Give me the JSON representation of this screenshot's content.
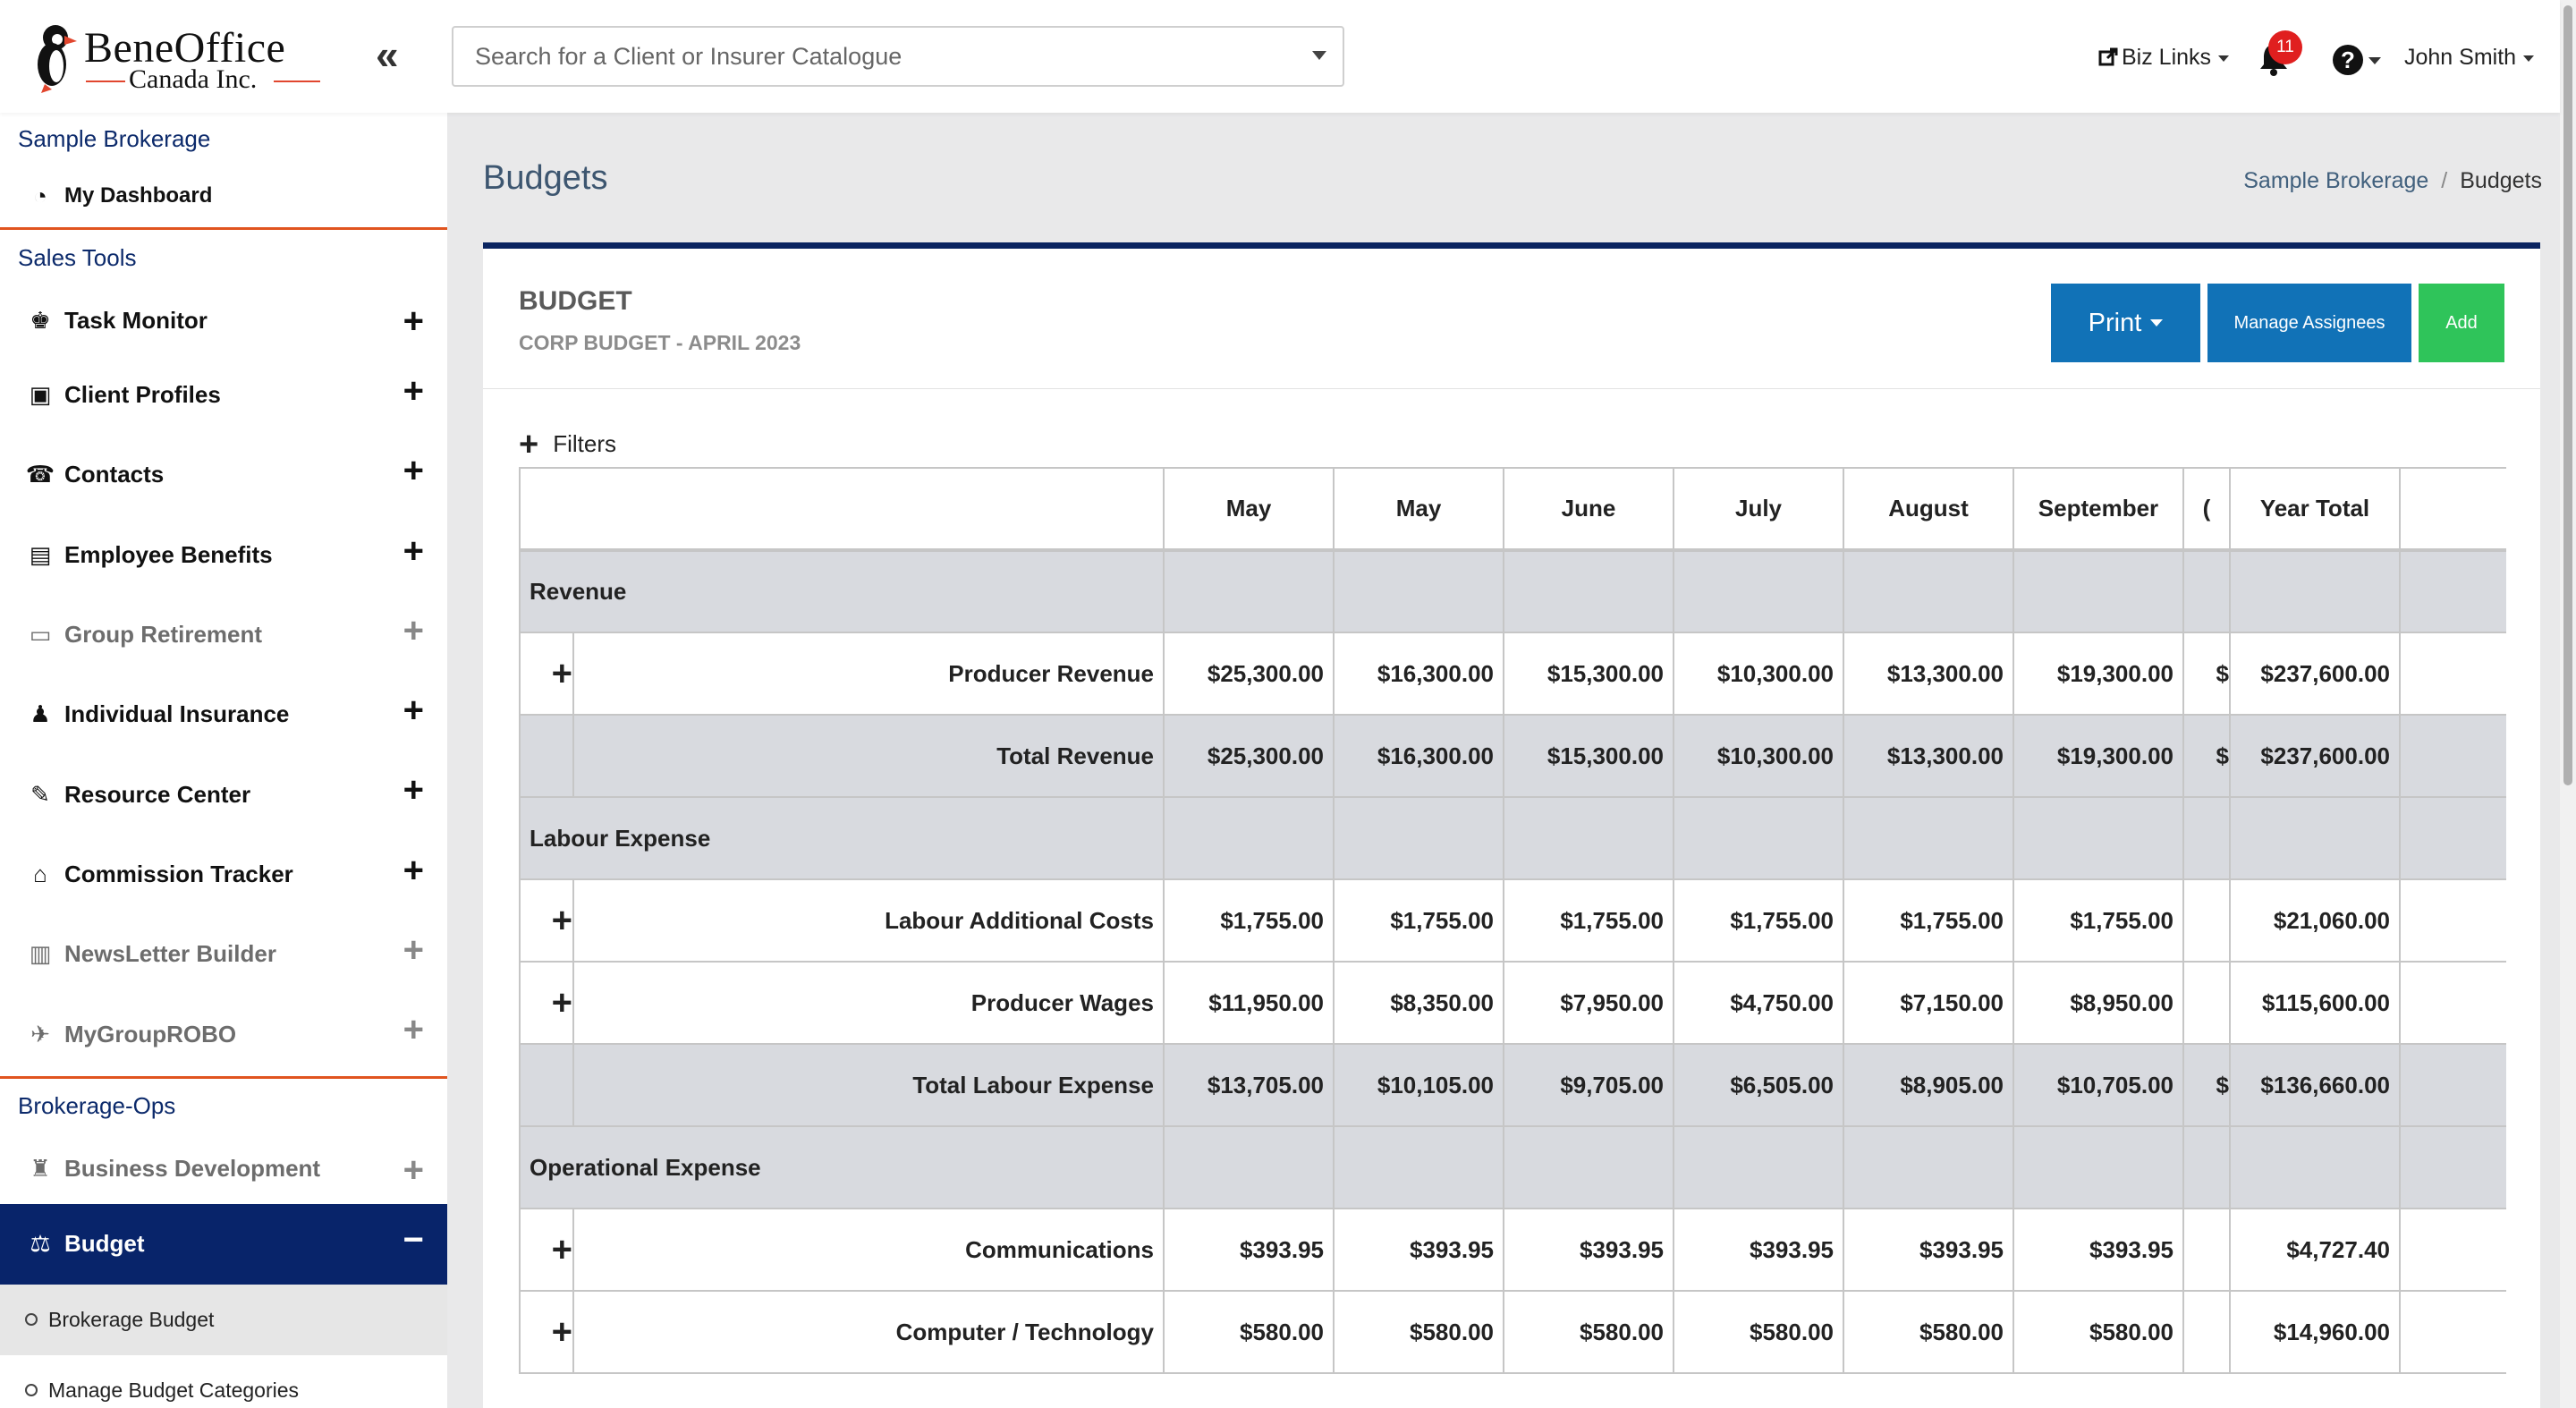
{
  "header": {
    "logo_name": "BeneOffice",
    "logo_sub": "Canada Inc.",
    "collapse_icon": "«",
    "search_placeholder": "Search for a Client or Insurer Catalogue",
    "biz_links": "Biz Links",
    "notification_count": "11",
    "help_icon": "?",
    "user_name": "John Smith"
  },
  "sidebar": {
    "brokerage_name": "Sample Brokerage",
    "dashboard": {
      "label": "My Dashboard",
      "icon": "dashboard-icon"
    },
    "sales_tools_title": "Sales Tools",
    "sales_tools": [
      {
        "label": "Task Monitor",
        "icon": "person-at-desk-icon",
        "glyph": "♚",
        "muted": false
      },
      {
        "label": "Client Profiles",
        "icon": "address-book-icon",
        "glyph": "▣",
        "muted": false
      },
      {
        "label": "Contacts",
        "icon": "phone-icon",
        "glyph": "☎",
        "muted": false
      },
      {
        "label": "Employee Benefits",
        "icon": "document-icon",
        "glyph": "▤",
        "muted": false
      },
      {
        "label": "Group Retirement",
        "icon": "money-bill-icon",
        "glyph": "▭",
        "muted": true
      },
      {
        "label": "Individual Insurance",
        "icon": "person-icon",
        "glyph": "♟",
        "muted": false
      },
      {
        "label": "Resource Center",
        "icon": "pencil-icon",
        "glyph": "✎",
        "muted": false
      },
      {
        "label": "Commission Tracker",
        "icon": "bank-icon",
        "glyph": "⌂",
        "muted": false
      },
      {
        "label": "NewsLetter Builder",
        "icon": "newspaper-icon",
        "glyph": "▥",
        "muted": true
      },
      {
        "label": "MyGroupROBO",
        "icon": "robot-icon",
        "glyph": "✈",
        "muted": true
      }
    ],
    "ops_title": "Brokerage-Ops",
    "ops": [
      {
        "label": "Business Development",
        "icon": "binoculars-icon",
        "glyph": "♜",
        "muted": true
      },
      {
        "label": "Budget",
        "icon": "balance-scale-icon",
        "glyph": "⚖",
        "active": true
      }
    ],
    "budget_sub": [
      "Brokerage Budget",
      "Manage Budget Categories"
    ]
  },
  "page": {
    "title": "Budgets",
    "breadcrumb": [
      {
        "label": "Sample Brokerage"
      },
      {
        "label": "Budgets"
      }
    ]
  },
  "card": {
    "title": "BUDGET",
    "subtitle": "CORP BUDGET - APRIL 2023",
    "print_label": "Print",
    "manage_label": "Manage Assignees",
    "add_label": "Add",
    "filters_label": "Filters"
  },
  "table": {
    "headers": [
      "May",
      "May",
      "June",
      "July",
      "August",
      "September",
      "(",
      "Year Total"
    ],
    "rows": [
      {
        "kind": "cat",
        "label": "Revenue"
      },
      {
        "kind": "line",
        "label": "Producer Revenue",
        "values": [
          "$25,300.00",
          "$16,300.00",
          "$15,300.00",
          "$10,300.00",
          "$13,300.00",
          "$19,300.00",
          "$",
          "$237,600.00"
        ]
      },
      {
        "kind": "total",
        "label": "Total  Revenue",
        "values": [
          "$25,300.00",
          "$16,300.00",
          "$15,300.00",
          "$10,300.00",
          "$13,300.00",
          "$19,300.00",
          "$",
          "$237,600.00"
        ]
      },
      {
        "kind": "cat",
        "label": "Labour Expense"
      },
      {
        "kind": "line",
        "label": "Labour Additional Costs",
        "values": [
          "$1,755.00",
          "$1,755.00",
          "$1,755.00",
          "$1,755.00",
          "$1,755.00",
          "$1,755.00",
          "",
          "$21,060.00"
        ]
      },
      {
        "kind": "line",
        "label": "Producer Wages",
        "values": [
          "$11,950.00",
          "$8,350.00",
          "$7,950.00",
          "$4,750.00",
          "$7,150.00",
          "$8,950.00",
          "",
          "$115,600.00"
        ]
      },
      {
        "kind": "total",
        "label": "Total  Labour Expense",
        "values": [
          "$13,705.00",
          "$10,105.00",
          "$9,705.00",
          "$6,505.00",
          "$8,905.00",
          "$10,705.00",
          "$",
          "$136,660.00"
        ]
      },
      {
        "kind": "cat",
        "label": "Operational Expense"
      },
      {
        "kind": "line",
        "label": "Communications",
        "values": [
          "$393.95",
          "$393.95",
          "$393.95",
          "$393.95",
          "$393.95",
          "$393.95",
          "",
          "$4,727.40"
        ]
      },
      {
        "kind": "line",
        "label": "Computer / Technology",
        "values": [
          "$580.00",
          "$580.00",
          "$580.00",
          "$580.00",
          "$580.00",
          "$580.00",
          "",
          "$14,960.00"
        ]
      }
    ]
  },
  "colors": {
    "navy": "#08246a",
    "primary_button": "#1172b7",
    "success_button": "#2fc45a",
    "accent_orange": "#e0541f",
    "badge_red": "#e01f1f"
  }
}
